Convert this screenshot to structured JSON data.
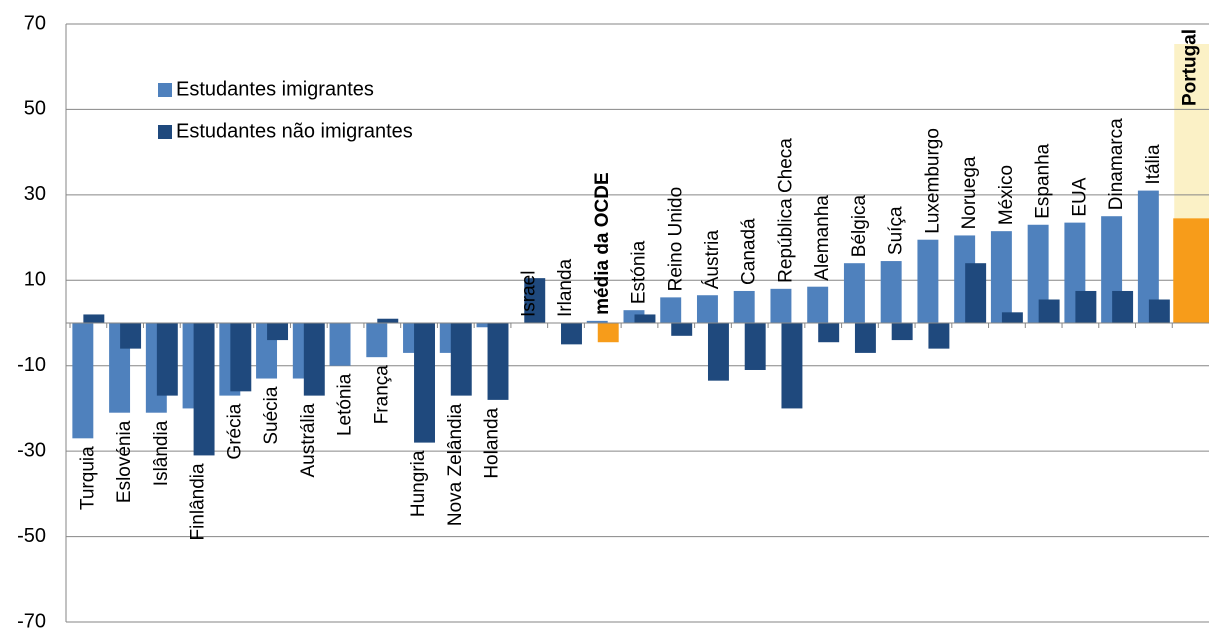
{
  "chart_data": {
    "type": "bar",
    "categories": [
      "Turquia",
      "Eslovénia",
      "Islândia",
      "Finlândia",
      "Grécia",
      "Suécia",
      "Austrália",
      "Letónia",
      "França",
      "Hungria",
      "Nova Zelândia",
      "Holanda",
      "Israel",
      "Irlanda",
      "média da OCDE",
      "Estónia",
      "Reino Unido",
      "Áustria",
      "Canadá",
      "República Checa",
      "Alemanha",
      "Bélgica",
      "Suíça",
      "Luxemburgo",
      "Noruega",
      "México",
      "Espanha",
      "EUA",
      "Dinamarca",
      "Itália",
      "Portugal"
    ],
    "series": [
      {
        "name": "Estudantes imigrantes",
        "color": "#4f81bd",
        "values": [
          -27,
          -21,
          -21,
          -20,
          -17,
          -13,
          -13,
          -10,
          -8,
          -7,
          -7,
          -1,
          0,
          0,
          0.5,
          3,
          6,
          6.5,
          7.5,
          8,
          8.5,
          14,
          14.5,
          19.5,
          20.5,
          21.5,
          23,
          23.5,
          25,
          31,
          24.5
        ],
        "point_colors": [
          null,
          null,
          null,
          null,
          null,
          null,
          null,
          null,
          null,
          null,
          null,
          null,
          null,
          null,
          null,
          null,
          null,
          null,
          null,
          null,
          null,
          null,
          null,
          null,
          null,
          null,
          null,
          null,
          null,
          null,
          "#f79c1a"
        ]
      },
      {
        "name": "Estudantes não imigrantes",
        "color": "#1f497d",
        "values": [
          2,
          -6,
          -17,
          -31,
          -16,
          -4,
          -17,
          0,
          1,
          -28,
          -17,
          -18,
          10.5,
          -5,
          -4.5,
          2,
          -3,
          -13.5,
          -11,
          -20,
          -4.5,
          -7,
          -4,
          -6,
          14,
          2.5,
          5.5,
          7.5,
          7.5,
          5.5,
          null
        ],
        "point_colors": [
          null,
          null,
          null,
          null,
          null,
          null,
          null,
          null,
          null,
          null,
          null,
          null,
          null,
          null,
          "#f79c1a",
          null,
          null,
          null,
          null,
          null,
          null,
          null,
          null,
          null,
          null,
          null,
          null,
          null,
          null,
          null,
          null
        ]
      }
    ],
    "ylim": [
      -70,
      70
    ],
    "yticks": [
      -70,
      -50,
      -30,
      -10,
      10,
      30,
      50,
      70
    ],
    "grid": true,
    "bold_labels": [
      14,
      30
    ],
    "highlight_index": 30,
    "highlight_color": "#fbf1c6",
    "legend": "upper left"
  }
}
